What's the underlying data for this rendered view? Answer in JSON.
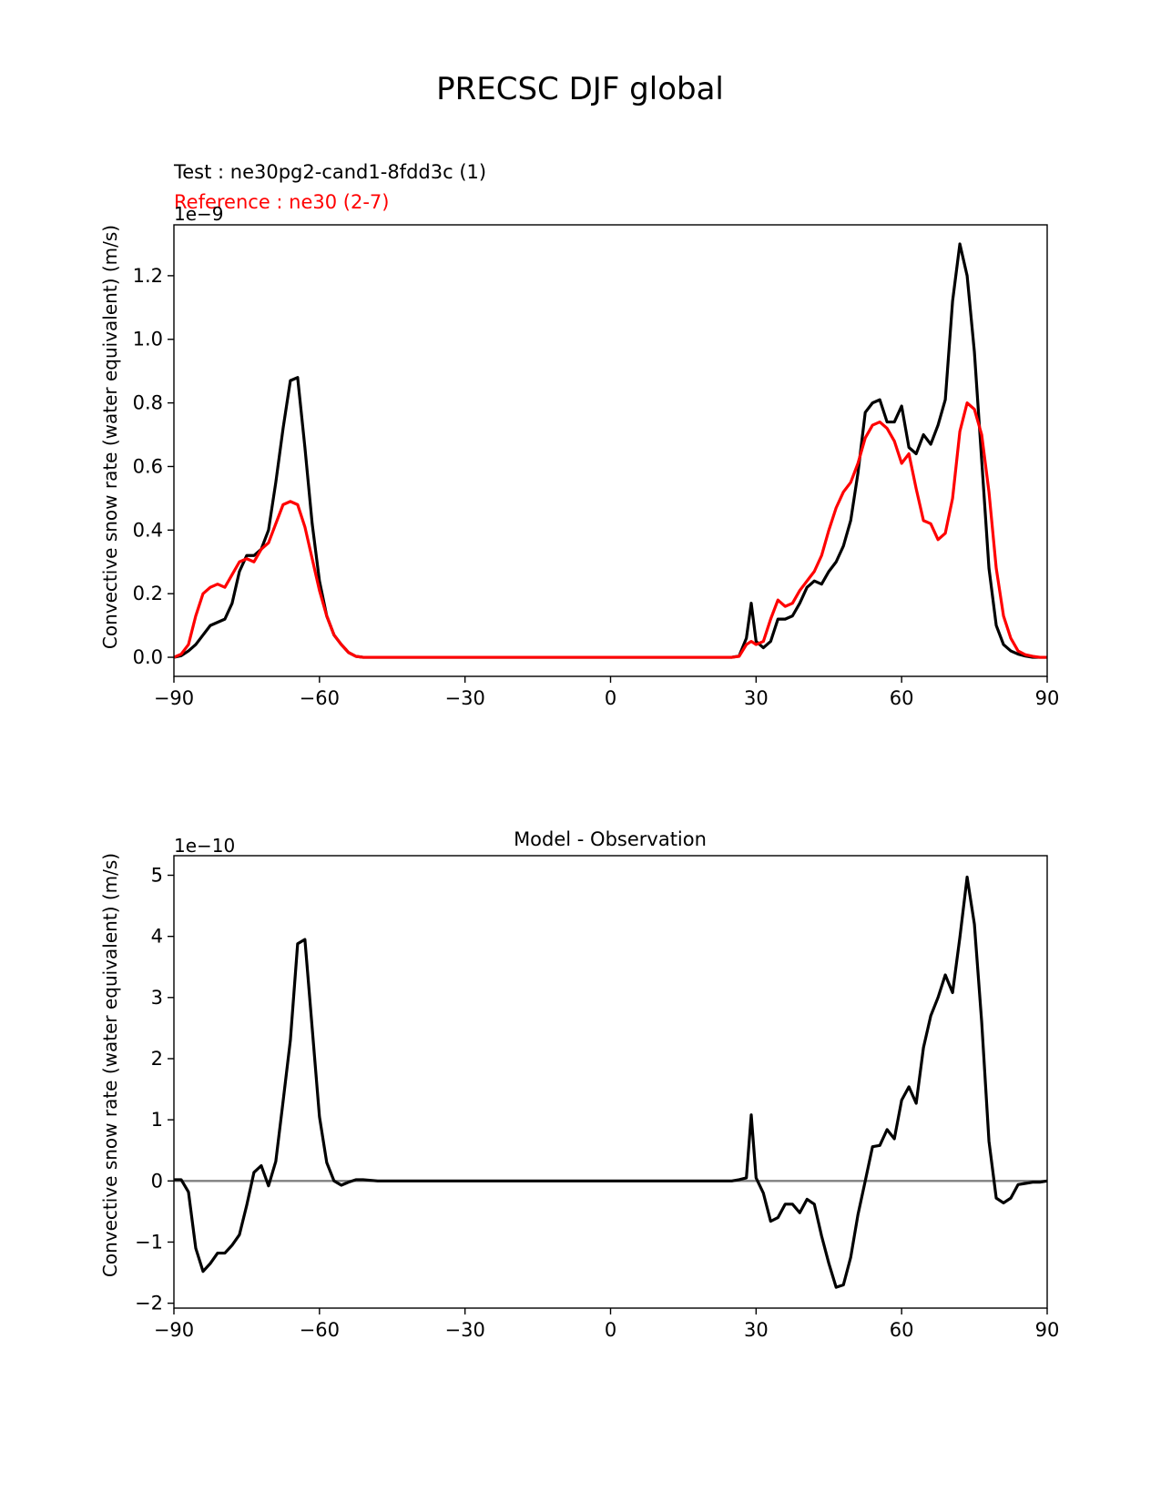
{
  "figure_title": "PRECSC DJF global",
  "chart_data": [
    {
      "type": "line",
      "test_label": "Test : ne30pg2-cand1-8fdd3c (1)",
      "reference_label": "Reference : ne30 (2-7)",
      "ylabel": "Convective snow rate (water equivalent) (m/s)",
      "offset_text": "1e−9",
      "xlim": [
        -90,
        90
      ],
      "ylim": [
        -0.06,
        1.36
      ],
      "xticks": [
        -90,
        -60,
        -30,
        0,
        30,
        60,
        90
      ],
      "xtick_labels": [
        "−90",
        "−60",
        "−30",
        "0",
        "30",
        "60",
        "90"
      ],
      "yticks": [
        0.0,
        0.2,
        0.4,
        0.6,
        0.8,
        1.0,
        1.2
      ],
      "ytick_labels": [
        "0.0",
        "0.2",
        "0.4",
        "0.6",
        "0.8",
        "1.0",
        "1.2"
      ],
      "colors": {
        "test": "#000000",
        "reference": "#ff0000"
      },
      "series": [
        {
          "name": "Test : ne30pg2-cand1-8fdd3c (1)",
          "color": "#000000",
          "x": [
            -90,
            -88.5,
            -87,
            -85.5,
            -84,
            -82.5,
            -81,
            -79.5,
            -78,
            -76.5,
            -75,
            -73.5,
            -72,
            -70.5,
            -69,
            -67.5,
            -66,
            -64.5,
            -63,
            -61.5,
            -60,
            -58.5,
            -57,
            -55.5,
            -54,
            -52.5,
            -51,
            -48,
            -40,
            -30,
            -20,
            -10,
            0,
            10,
            20,
            25,
            26.5,
            28,
            29,
            30,
            31.5,
            33,
            34.5,
            36,
            37.5,
            39,
            40.5,
            42,
            43.5,
            45,
            46.5,
            48,
            49.5,
            51,
            52.5,
            54,
            55.5,
            57,
            58.5,
            60,
            61.5,
            63,
            64.5,
            66,
            67.5,
            69,
            70.5,
            72,
            73.5,
            75,
            76.5,
            78,
            79.5,
            81,
            82.5,
            84,
            85.5,
            87,
            88.5,
            90
          ],
          "y": [
            0.0,
            0.005,
            0.02,
            0.04,
            0.07,
            0.1,
            0.11,
            0.12,
            0.17,
            0.27,
            0.32,
            0.32,
            0.34,
            0.4,
            0.55,
            0.72,
            0.87,
            0.88,
            0.66,
            0.42,
            0.24,
            0.13,
            0.07,
            0.04,
            0.015,
            0.003,
            0,
            0,
            0,
            0,
            0,
            0,
            0,
            0,
            0,
            0,
            0.004,
            0.06,
            0.17,
            0.05,
            0.03,
            0.05,
            0.12,
            0.12,
            0.13,
            0.17,
            0.22,
            0.24,
            0.23,
            0.27,
            0.3,
            0.35,
            0.43,
            0.58,
            0.77,
            0.8,
            0.81,
            0.74,
            0.74,
            0.79,
            0.66,
            0.64,
            0.7,
            0.67,
            0.73,
            0.81,
            1.12,
            1.3,
            1.2,
            0.96,
            0.62,
            0.28,
            0.1,
            0.04,
            0.02,
            0.01,
            0.004,
            0,
            0,
            0
          ]
        },
        {
          "name": "Reference : ne30 (2-7)",
          "color": "#ff0000",
          "x": [
            -90,
            -88.5,
            -87,
            -85.5,
            -84,
            -82.5,
            -81,
            -79.5,
            -78,
            -76.5,
            -75,
            -73.5,
            -72,
            -70.5,
            -69,
            -67.5,
            -66,
            -64.5,
            -63,
            -61.5,
            -60,
            -58.5,
            -57,
            -55.5,
            -54,
            -52.5,
            -51,
            -48,
            -40,
            -30,
            -20,
            -10,
            0,
            10,
            20,
            25,
            26.5,
            28,
            29,
            30,
            31.5,
            33,
            34.5,
            36,
            37.5,
            39,
            40.5,
            42,
            43.5,
            45,
            46.5,
            48,
            49.5,
            51,
            52.5,
            54,
            55.5,
            57,
            58.5,
            60,
            61.5,
            63,
            64.5,
            66,
            67.5,
            69,
            70.5,
            72,
            73.5,
            75,
            76.5,
            78,
            79.5,
            81,
            82.5,
            84,
            85.5,
            87,
            88.5,
            90
          ],
          "y": [
            0.0,
            0.01,
            0.04,
            0.13,
            0.2,
            0.22,
            0.23,
            0.22,
            0.26,
            0.3,
            0.31,
            0.3,
            0.34,
            0.36,
            0.42,
            0.48,
            0.49,
            0.48,
            0.41,
            0.31,
            0.21,
            0.13,
            0.07,
            0.04,
            0.015,
            0.003,
            0,
            0,
            0,
            0,
            0,
            0,
            0,
            0,
            0,
            0,
            0.003,
            0.04,
            0.05,
            0.04,
            0.05,
            0.12,
            0.18,
            0.16,
            0.17,
            0.21,
            0.24,
            0.27,
            0.32,
            0.4,
            0.47,
            0.52,
            0.55,
            0.61,
            0.69,
            0.73,
            0.74,
            0.72,
            0.68,
            0.61,
            0.64,
            0.53,
            0.43,
            0.42,
            0.37,
            0.39,
            0.5,
            0.71,
            0.8,
            0.78,
            0.7,
            0.52,
            0.28,
            0.13,
            0.06,
            0.02,
            0.008,
            0.003,
            0,
            0
          ]
        }
      ]
    },
    {
      "type": "line",
      "title": "Model - Observation",
      "ylabel": "Convective snow rate (water equivalent) (m/s)",
      "offset_text": "1e−10",
      "xlim": [
        -90,
        90
      ],
      "ylim": [
        -2.08,
        5.32
      ],
      "xticks": [
        -90,
        -60,
        -30,
        0,
        30,
        60,
        90
      ],
      "xtick_labels": [
        "−90",
        "−60",
        "−30",
        "0",
        "30",
        "60",
        "90"
      ],
      "yticks": [
        -2,
        -1,
        0,
        1,
        2,
        3,
        4,
        5
      ],
      "ytick_labels": [
        "−2",
        "−1",
        "0",
        "1",
        "2",
        "3",
        "4",
        "5"
      ],
      "zero_line_color": "#808080",
      "series": [
        {
          "color": "#000000",
          "x": [
            -90,
            -88.5,
            -87,
            -85.5,
            -84,
            -82.5,
            -81,
            -79.5,
            -78,
            -76.5,
            -75,
            -73.5,
            -72,
            -70.5,
            -69,
            -67.5,
            -66,
            -64.5,
            -63,
            -61.5,
            -60,
            -58.5,
            -57,
            -55.5,
            -54,
            -52.5,
            -51,
            -48,
            -40,
            -30,
            -20,
            -10,
            0,
            10,
            20,
            25,
            26.5,
            28,
            29,
            30,
            31.5,
            33,
            34.5,
            36,
            37.5,
            39,
            40.5,
            42,
            43.5,
            45,
            46.5,
            48,
            49.5,
            51,
            52.5,
            54,
            55.5,
            57,
            58.5,
            60,
            61.5,
            63,
            64.5,
            66,
            67.5,
            69,
            70.5,
            72,
            73.5,
            75,
            76.5,
            78,
            79.5,
            81,
            82.5,
            84,
            85.5,
            87,
            88.5,
            90
          ],
          "y": [
            0.02,
            0.02,
            -0.18,
            -1.1,
            -1.48,
            -1.35,
            -1.18,
            -1.18,
            -1.05,
            -0.88,
            -0.4,
            0.14,
            0.25,
            -0.08,
            0.32,
            1.3,
            2.3,
            3.88,
            3.95,
            2.5,
            1.05,
            0.3,
            0.0,
            -0.07,
            -0.02,
            0.02,
            0.02,
            0.0,
            0.0,
            0.0,
            0.0,
            0.0,
            0.0,
            0.0,
            0.0,
            0.0,
            0.02,
            0.05,
            1.08,
            0.05,
            -0.2,
            -0.66,
            -0.6,
            -0.38,
            -0.38,
            -0.52,
            -0.3,
            -0.38,
            -0.9,
            -1.35,
            -1.74,
            -1.7,
            -1.25,
            -0.55,
            0.0,
            0.56,
            0.58,
            0.84,
            0.69,
            1.32,
            1.54,
            1.27,
            2.18,
            2.7,
            3.0,
            3.37,
            3.08,
            3.98,
            4.97,
            4.2,
            2.6,
            0.65,
            -0.28,
            -0.36,
            -0.28,
            -0.06,
            -0.04,
            -0.02,
            -0.02,
            0.0
          ]
        }
      ]
    }
  ]
}
